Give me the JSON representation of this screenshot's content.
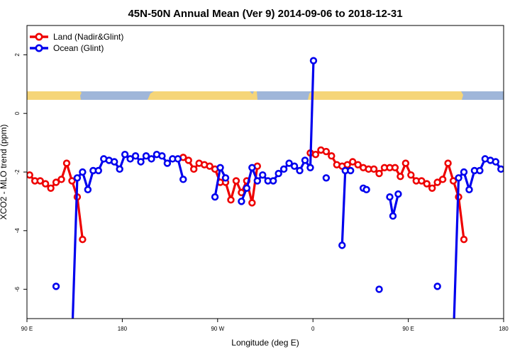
{
  "chart_data": {
    "type": "line",
    "title": "45N-50N Annual Mean (Ver 9)   2014-09-06 to 2018-12-31",
    "xlabel": "Longitude (deg E)",
    "ylabel": "XCO2 - MLO trend (ppm)",
    "xlim": [
      90,
      450
    ],
    "ylim": [
      -7,
      3
    ],
    "x_ticks": [
      {
        "value": 90,
        "label": "90 E"
      },
      {
        "value": 180,
        "label": "180"
      },
      {
        "value": 270,
        "label": "90 W"
      },
      {
        "value": 360,
        "label": "0"
      },
      {
        "value": 450,
        "label": "90 E"
      },
      {
        "value": 540,
        "label": "180"
      }
    ],
    "y_ticks": [
      {
        "value": 2,
        "label": "2"
      },
      {
        "value": 0,
        "label": "0"
      },
      {
        "value": -2,
        "label": "-2"
      },
      {
        "value": -4,
        "label": "-4"
      },
      {
        "value": -6,
        "label": "-6"
      }
    ],
    "x_view": [
      90,
      540
    ],
    "legend_position": "top-left",
    "series": [
      {
        "name": "Land (Nadir&Glint)",
        "color": "#ee0000",
        "points": [
          [
            92.5,
            -2.1
          ],
          [
            97.5,
            -2.3
          ],
          [
            102.5,
            -2.3
          ],
          [
            107.5,
            -2.4
          ],
          [
            112.5,
            -2.55
          ],
          [
            117.5,
            -2.35
          ],
          [
            122.5,
            -2.25
          ],
          [
            127.5,
            -1.7
          ],
          [
            132.5,
            -2.3
          ],
          [
            137.5,
            -2.85
          ],
          [
            142.5,
            -4.3
          ],
          null,
          [
            237.5,
            -1.5
          ],
          [
            242.5,
            -1.6
          ],
          [
            247.5,
            -1.9
          ],
          [
            252.5,
            -1.7
          ],
          [
            257.5,
            -1.75
          ],
          [
            262.5,
            -1.8
          ],
          [
            267.5,
            -1.9
          ],
          [
            272.5,
            -2.35
          ],
          [
            277.5,
            -2.35
          ],
          [
            282.5,
            -2.95
          ],
          [
            287.5,
            -2.3
          ],
          [
            292.5,
            -2.7
          ],
          [
            297.5,
            -2.3
          ],
          [
            302.5,
            -3.05
          ],
          [
            307.5,
            -1.8
          ],
          null,
          [
            357.5,
            -1.35
          ],
          [
            362.5,
            -1.4
          ],
          [
            367.5,
            -1.25
          ],
          [
            372.5,
            -1.3
          ],
          [
            377.5,
            -1.45
          ],
          [
            382.5,
            -1.75
          ],
          [
            387.5,
            -1.8
          ],
          [
            392.5,
            -1.75
          ],
          [
            397.5,
            -1.65
          ],
          [
            402.5,
            -1.75
          ],
          [
            407.5,
            -1.85
          ],
          [
            412.5,
            -1.9
          ],
          [
            417.5,
            -1.9
          ],
          [
            422.5,
            -2.05
          ],
          [
            427.5,
            -1.85
          ],
          [
            432.5,
            -1.85
          ],
          [
            437.5,
            -1.85
          ],
          [
            442.5,
            -2.15
          ],
          [
            447.5,
            -1.7
          ],
          [
            452.5,
            -2.1
          ],
          [
            457.5,
            -2.3
          ],
          [
            462.5,
            -2.3
          ],
          [
            467.5,
            -2.4
          ],
          [
            472.5,
            -2.55
          ],
          [
            477.5,
            -2.35
          ],
          [
            482.5,
            -2.25
          ],
          [
            487.5,
            -1.7
          ],
          [
            492.5,
            -2.3
          ],
          [
            497.5,
            -2.85
          ],
          [
            502.5,
            -4.3
          ]
        ]
      },
      {
        "name": "Ocean (Glint)",
        "color": "#0000ee",
        "points": [
          [
            117.5,
            -5.9
          ],
          null,
          [
            132.5,
            -7.8
          ],
          [
            137.5,
            -2.2
          ],
          [
            142.5,
            -2.0
          ],
          [
            147.5,
            -2.6
          ],
          [
            152.5,
            -1.95
          ],
          [
            157.5,
            -1.95
          ],
          [
            162.5,
            -1.55
          ],
          [
            167.5,
            -1.6
          ],
          [
            172.5,
            -1.65
          ],
          [
            177.5,
            -1.9
          ],
          [
            182.5,
            -1.4
          ],
          [
            187.5,
            -1.55
          ],
          [
            192.5,
            -1.45
          ],
          [
            197.5,
            -1.65
          ],
          [
            202.5,
            -1.45
          ],
          [
            207.5,
            -1.55
          ],
          [
            212.5,
            -1.4
          ],
          [
            217.5,
            -1.45
          ],
          [
            222.5,
            -1.7
          ],
          [
            227.5,
            -1.55
          ],
          [
            232.5,
            -1.55
          ],
          [
            237.5,
            -2.25
          ],
          null,
          [
            267.5,
            -2.85
          ],
          [
            272.5,
            -1.85
          ],
          [
            277.5,
            -2.2
          ],
          null,
          [
            292.5,
            -3.0
          ],
          [
            297.5,
            -2.55
          ],
          [
            302.5,
            -1.85
          ],
          [
            307.5,
            -2.3
          ],
          [
            312.5,
            -2.1
          ],
          [
            317.5,
            -2.3
          ],
          [
            322.5,
            -2.3
          ],
          [
            327.5,
            -2.05
          ],
          [
            332.5,
            -1.9
          ],
          [
            337.5,
            -1.7
          ],
          [
            342.5,
            -1.8
          ],
          [
            347.5,
            -1.95
          ],
          [
            352.5,
            -1.6
          ],
          [
            357.5,
            -1.85
          ],
          [
            360.5,
            1.8
          ],
          null,
          [
            372.5,
            -2.2
          ],
          null,
          [
            387.5,
            -4.5
          ],
          [
            390.5,
            -1.95
          ],
          [
            395.5,
            -1.95
          ],
          null,
          [
            407.5,
            -2.55
          ],
          [
            410.5,
            -2.6
          ],
          null,
          [
            422.5,
            -6.0
          ],
          null,
          [
            432.5,
            -2.85
          ],
          [
            435.5,
            -3.5
          ],
          [
            440.5,
            -2.75
          ],
          null,
          [
            477.5,
            -5.9
          ],
          null,
          [
            492.5,
            -7.8
          ],
          [
            497.5,
            -2.2
          ],
          [
            502.5,
            -2.0
          ],
          [
            507.5,
            -2.6
          ],
          [
            512.5,
            -1.95
          ],
          [
            517.5,
            -1.95
          ],
          [
            522.5,
            -1.55
          ],
          [
            527.5,
            -1.6
          ],
          [
            532.5,
            -1.65
          ],
          [
            537.5,
            -1.9
          ]
        ]
      }
    ]
  }
}
